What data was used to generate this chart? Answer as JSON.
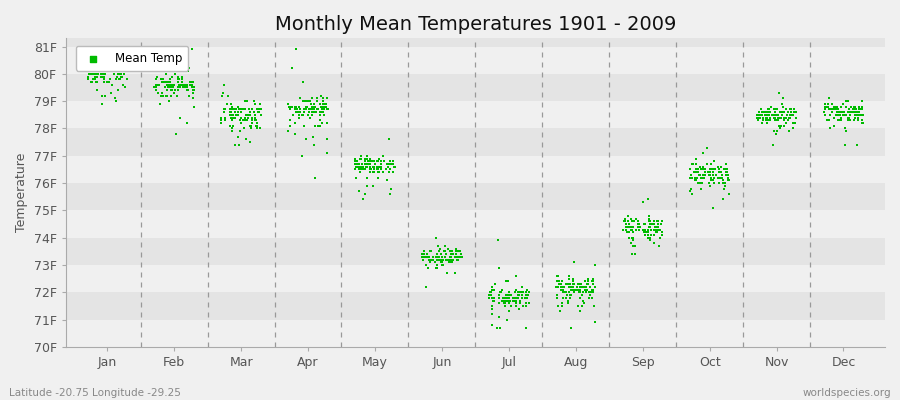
{
  "title": "Monthly Mean Temperatures 1901 - 2009",
  "ylabel": "Temperature",
  "xlabel_bottom_left": "Latitude -20.75 Longitude -29.25",
  "xlabel_bottom_right": "worldspecies.org",
  "ytick_labels": [
    "70F",
    "71F",
    "72F",
    "73F",
    "74F",
    "75F",
    "76F",
    "77F",
    "78F",
    "79F",
    "80F",
    "81F"
  ],
  "ytick_values": [
    70,
    71,
    72,
    73,
    74,
    75,
    76,
    77,
    78,
    79,
    80,
    81
  ],
  "ylim": [
    70,
    81
  ],
  "months": [
    "Jan",
    "Feb",
    "Mar",
    "Apr",
    "May",
    "Jun",
    "Jul",
    "Aug",
    "Sep",
    "Oct",
    "Nov",
    "Dec"
  ],
  "month_centers": [
    1,
    2,
    3,
    4,
    5,
    6,
    7,
    8,
    9,
    10,
    11,
    12
  ],
  "mean_temps": [
    80.1,
    79.65,
    78.55,
    78.75,
    76.65,
    73.3,
    71.85,
    72.15,
    74.4,
    76.35,
    78.5,
    78.65
  ],
  "spread_up": [
    0.55,
    0.6,
    0.9,
    0.6,
    0.6,
    0.5,
    0.5,
    0.6,
    0.55,
    0.6,
    0.5,
    0.6
  ],
  "spread_down": [
    0.9,
    1.1,
    0.9,
    1.3,
    1.1,
    0.9,
    1.2,
    1.0,
    0.9,
    0.9,
    0.8,
    0.8
  ],
  "dot_color": "#00BB00",
  "background_color": "#f0f0f0",
  "stripe_light": "#f0f0f0",
  "stripe_dark": "#e4e4e4",
  "legend_label": "Mean Temp",
  "title_fontsize": 14,
  "axis_fontsize": 9,
  "tick_fontsize": 9,
  "n_points": 109,
  "vline_color": "#999999",
  "vline_style": "--",
  "marker_size": 3
}
